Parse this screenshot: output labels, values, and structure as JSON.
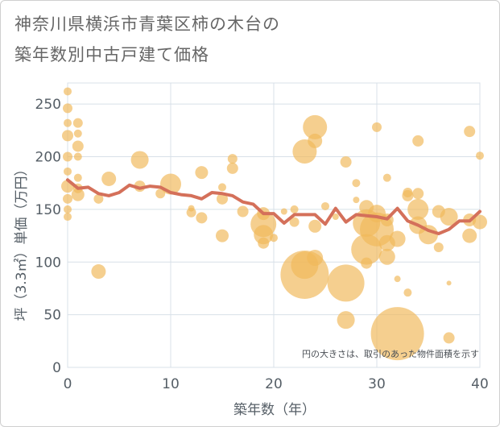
{
  "title_line1": "神奈川県横浜市青葉区柿の木台の",
  "title_line2": "築年数別中古戸建て価格",
  "chart_data": {
    "type": "scatter",
    "title": "神奈川県横浜市青葉区柿の木台の築年数別中古戸建て価格",
    "xlabel": "築年数（年）",
    "ylabel": "坪（3.3㎡）単価（万円）",
    "xlim": [
      0,
      40
    ],
    "ylim": [
      0,
      270
    ],
    "x_ticks": [
      "0",
      "10",
      "20",
      "30",
      "40"
    ],
    "y_ticks": [
      "0",
      "50",
      "100",
      "150",
      "200",
      "250"
    ],
    "grid": true,
    "note": "円の大きさは、取引のあった物件面積を示す",
    "colors": {
      "bubble": "#f0b85a",
      "line": "#d4705a",
      "grid": "#d8e0e8"
    },
    "bubbles": [
      {
        "x": 0,
        "y": 262,
        "s": 5
      },
      {
        "x": 0,
        "y": 246,
        "s": 6
      },
      {
        "x": 0,
        "y": 232,
        "s": 5
      },
      {
        "x": 0,
        "y": 220,
        "s": 7
      },
      {
        "x": 0,
        "y": 200,
        "s": 6
      },
      {
        "x": 0,
        "y": 186,
        "s": 5
      },
      {
        "x": 0,
        "y": 172,
        "s": 8
      },
      {
        "x": 0,
        "y": 160,
        "s": 6
      },
      {
        "x": 0,
        "y": 150,
        "s": 5
      },
      {
        "x": 0,
        "y": 143,
        "s": 5
      },
      {
        "x": 1,
        "y": 232,
        "s": 6
      },
      {
        "x": 1,
        "y": 222,
        "s": 5
      },
      {
        "x": 1,
        "y": 210,
        "s": 7
      },
      {
        "x": 1,
        "y": 200,
        "s": 5
      },
      {
        "x": 1,
        "y": 180,
        "s": 5
      },
      {
        "x": 1,
        "y": 170,
        "s": 6
      },
      {
        "x": 1,
        "y": 164,
        "s": 8
      },
      {
        "x": 3,
        "y": 160,
        "s": 6
      },
      {
        "x": 3,
        "y": 91,
        "s": 9
      },
      {
        "x": 4,
        "y": 179,
        "s": 9
      },
      {
        "x": 7,
        "y": 197,
        "s": 11
      },
      {
        "x": 7,
        "y": 172,
        "s": 7
      },
      {
        "x": 9,
        "y": 165,
        "s": 6
      },
      {
        "x": 10,
        "y": 174,
        "s": 13
      },
      {
        "x": 12,
        "y": 151,
        "s": 4
      },
      {
        "x": 12,
        "y": 147,
        "s": 6
      },
      {
        "x": 13,
        "y": 185,
        "s": 8
      },
      {
        "x": 13,
        "y": 142,
        "s": 7
      },
      {
        "x": 15,
        "y": 171,
        "s": 5
      },
      {
        "x": 15,
        "y": 160,
        "s": 7
      },
      {
        "x": 15,
        "y": 125,
        "s": 8
      },
      {
        "x": 16,
        "y": 198,
        "s": 6
      },
      {
        "x": 16,
        "y": 189,
        "s": 7
      },
      {
        "x": 17,
        "y": 148,
        "s": 7
      },
      {
        "x": 19,
        "y": 146,
        "s": 8
      },
      {
        "x": 19,
        "y": 136,
        "s": 16
      },
      {
        "x": 19,
        "y": 126,
        "s": 12
      },
      {
        "x": 19,
        "y": 118,
        "s": 7
      },
      {
        "x": 20,
        "y": 123,
        "s": 5
      },
      {
        "x": 21,
        "y": 148,
        "s": 4
      },
      {
        "x": 22,
        "y": 150,
        "s": 5
      },
      {
        "x": 22,
        "y": 138,
        "s": 6
      },
      {
        "x": 23,
        "y": 205,
        "s": 15
      },
      {
        "x": 23,
        "y": 97,
        "s": 17
      },
      {
        "x": 23,
        "y": 88,
        "s": 30
      },
      {
        "x": 24,
        "y": 228,
        "s": 15
      },
      {
        "x": 24,
        "y": 215,
        "s": 9
      },
      {
        "x": 24,
        "y": 134,
        "s": 8
      },
      {
        "x": 24,
        "y": 104,
        "s": 10
      },
      {
        "x": 25,
        "y": 153,
        "s": 5
      },
      {
        "x": 26,
        "y": 143,
        "s": 4
      },
      {
        "x": 27,
        "y": 195,
        "s": 7
      },
      {
        "x": 27,
        "y": 80,
        "s": 23
      },
      {
        "x": 27,
        "y": 45,
        "s": 11
      },
      {
        "x": 28,
        "y": 175,
        "s": 5
      },
      {
        "x": 28,
        "y": 159,
        "s": 4
      },
      {
        "x": 29,
        "y": 152,
        "s": 9
      },
      {
        "x": 29,
        "y": 137,
        "s": 17
      },
      {
        "x": 29,
        "y": 112,
        "s": 19
      },
      {
        "x": 29,
        "y": 99,
        "s": 7
      },
      {
        "x": 30,
        "y": 228,
        "s": 6
      },
      {
        "x": 30,
        "y": 146,
        "s": 11
      },
      {
        "x": 30,
        "y": 131,
        "s": 21
      },
      {
        "x": 31,
        "y": 180,
        "s": 5
      },
      {
        "x": 31,
        "y": 118,
        "s": 10
      },
      {
        "x": 31,
        "y": 105,
        "s": 10
      },
      {
        "x": 31,
        "y": 140,
        "s": 8
      },
      {
        "x": 32,
        "y": 84,
        "s": 4
      },
      {
        "x": 32,
        "y": 122,
        "s": 10
      },
      {
        "x": 32,
        "y": 32,
        "s": 33
      },
      {
        "x": 33,
        "y": 166,
        "s": 6
      },
      {
        "x": 33,
        "y": 163,
        "s": 7
      },
      {
        "x": 33,
        "y": 71,
        "s": 5
      },
      {
        "x": 34,
        "y": 215,
        "s": 7
      },
      {
        "x": 34,
        "y": 165,
        "s": 7
      },
      {
        "x": 34,
        "y": 150,
        "s": 13
      },
      {
        "x": 34,
        "y": 135,
        "s": 11
      },
      {
        "x": 35,
        "y": 126,
        "s": 12
      },
      {
        "x": 36,
        "y": 148,
        "s": 8
      },
      {
        "x": 36,
        "y": 114,
        "s": 6
      },
      {
        "x": 37,
        "y": 143,
        "s": 11
      },
      {
        "x": 37,
        "y": 80,
        "s": 3
      },
      {
        "x": 37,
        "y": 28,
        "s": 7
      },
      {
        "x": 39,
        "y": 224,
        "s": 7
      },
      {
        "x": 39,
        "y": 140,
        "s": 8
      },
      {
        "x": 39,
        "y": 125,
        "s": 9
      },
      {
        "x": 40,
        "y": 201,
        "s": 5
      },
      {
        "x": 40,
        "y": 138,
        "s": 9
      }
    ],
    "series": [
      {
        "type": "line",
        "x": [
          0,
          1,
          2,
          3,
          4,
          5,
          6,
          7,
          8,
          9,
          10,
          11,
          12,
          13,
          14,
          15,
          16,
          17,
          18,
          19,
          20,
          21,
          22,
          23,
          24,
          25,
          26,
          27,
          28,
          29,
          30,
          31,
          32,
          33,
          34,
          35,
          36,
          37,
          38,
          39,
          40
        ],
        "values": [
          178,
          170,
          171,
          165,
          163,
          166,
          173,
          170,
          172,
          171,
          166,
          164,
          163,
          160,
          166,
          165,
          163,
          157,
          155,
          146,
          146,
          137,
          145,
          145,
          145,
          136,
          151,
          138,
          145,
          144,
          143,
          141,
          151,
          139,
          135,
          130,
          127,
          131,
          139,
          139,
          148
        ]
      }
    ]
  }
}
